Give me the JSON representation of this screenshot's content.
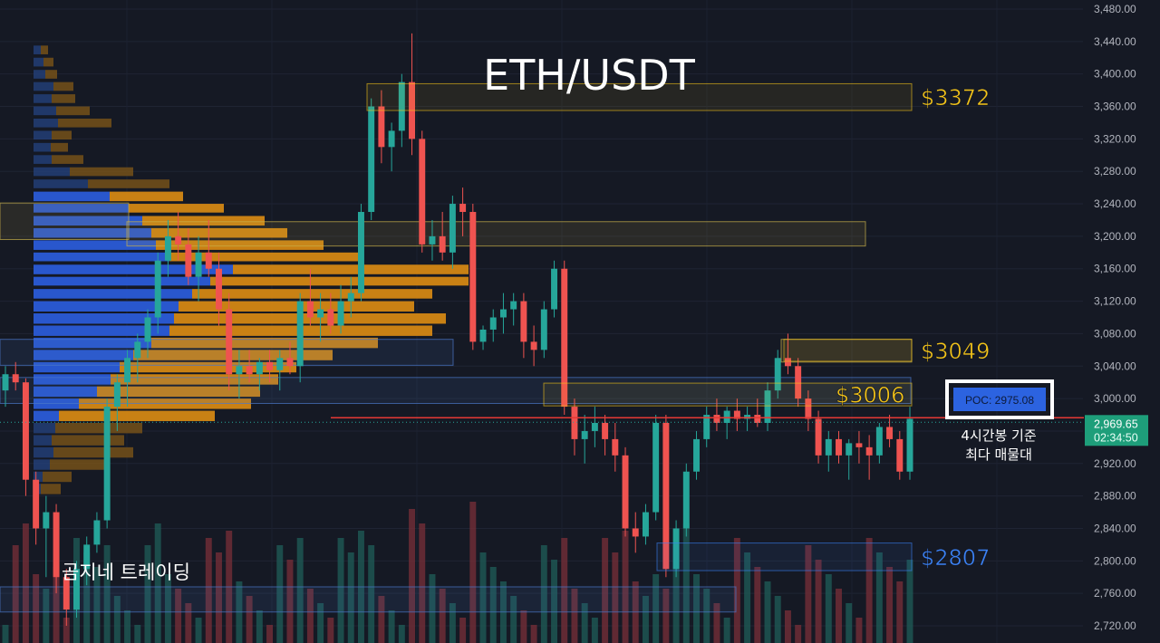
{
  "chart_data": {
    "type": "candlestick",
    "title": "ETH/USDT",
    "symbol": "ETH/USDT",
    "ylim": [
      2705,
      3490
    ],
    "y_ticks": [
      "3,480.00",
      "3,440.00",
      "3,400.00",
      "3,360.00",
      "3,320.00",
      "3,280.00",
      "3,240.00",
      "3,200.00",
      "3,160.00",
      "3,120.00",
      "3,080.00",
      "3,040.00",
      "3,000.00",
      "2,960.00",
      "2,920.00",
      "2,880.00",
      "2,840.00",
      "2,800.00",
      "2,760.00",
      "2,720.00"
    ],
    "y_tick_values": [
      3480,
      3440,
      3400,
      3360,
      3320,
      3280,
      3240,
      3200,
      3160,
      3120,
      3080,
      3040,
      3000,
      2960,
      2920,
      2880,
      2840,
      2800,
      2760,
      2720
    ],
    "current_price": {
      "value": 2969.65,
      "label": "2,969.65",
      "countdown": "02:34:50"
    },
    "levels": [
      {
        "label": "$3372",
        "value": 3372,
        "color": "#f5c518",
        "top": 3388,
        "bottom": 3355
      },
      {
        "label": "$3049",
        "value": 3049,
        "color": "#f5c518",
        "top": 3073,
        "bottom": 3046
      },
      {
        "label": "$3006",
        "value": 3006,
        "color": "#f5c518",
        "top": 3019,
        "bottom": 2991
      },
      {
        "label": "$2807",
        "value": 2807,
        "color": "#3b82f6",
        "top": 2822,
        "bottom": 2788
      }
    ],
    "zones": [
      {
        "top": 3241,
        "bottom": 3196,
        "color": "#c9b04a"
      },
      {
        "top": 3218,
        "bottom": 3188,
        "color": "#c9b04a"
      },
      {
        "top": 3073,
        "bottom": 3041,
        "color": "#4a78c9"
      },
      {
        "top": 3026,
        "bottom": 2994,
        "color": "#4a78c9"
      },
      {
        "top": 3073,
        "bottom": 3045,
        "color": "#c9b04a"
      },
      {
        "top": 2768,
        "bottom": 2737,
        "color": "#4a78c9"
      }
    ],
    "poc": {
      "label": "POC: 2975.08",
      "value": 2975.08
    },
    "poc_note": [
      "4시간봉 기준",
      "최다 매물대"
    ],
    "watermark": "곰지네 트레이딩",
    "candles": [
      [
        3010,
        3040,
        2990,
        3030
      ],
      [
        3030,
        3045,
        3010,
        3020
      ],
      [
        3020,
        3025,
        2880,
        2900
      ],
      [
        2900,
        2910,
        2820,
        2840
      ],
      [
        2840,
        2880,
        2780,
        2860
      ],
      [
        2860,
        2870,
        2760,
        2780
      ],
      [
        2780,
        2790,
        2720,
        2740
      ],
      [
        2740,
        2800,
        2730,
        2790
      ],
      [
        2790,
        2830,
        2770,
        2820
      ],
      [
        2820,
        2860,
        2810,
        2850
      ],
      [
        2850,
        3000,
        2840,
        2990
      ],
      [
        2990,
        3030,
        2960,
        3020
      ],
      [
        3020,
        3060,
        2990,
        3050
      ],
      [
        3050,
        3080,
        3020,
        3070
      ],
      [
        3070,
        3110,
        3050,
        3100
      ],
      [
        3100,
        3180,
        3080,
        3170
      ],
      [
        3170,
        3220,
        3150,
        3200
      ],
      [
        3200,
        3230,
        3170,
        3190
      ],
      [
        3190,
        3210,
        3140,
        3150
      ],
      [
        3150,
        3200,
        3120,
        3180
      ],
      [
        3180,
        3220,
        3150,
        3160
      ],
      [
        3160,
        3180,
        3090,
        3110
      ],
      [
        3110,
        3130,
        3010,
        3030
      ],
      [
        3030,
        3060,
        3000,
        3040
      ],
      [
        3040,
        3060,
        3020,
        3030
      ],
      [
        3030,
        3050,
        3010,
        3045
      ],
      [
        3045,
        3060,
        3020,
        3035
      ],
      [
        3035,
        3060,
        3010,
        3050
      ],
      [
        3050,
        3070,
        3030,
        3040
      ],
      [
        3040,
        3130,
        3020,
        3120
      ],
      [
        3120,
        3160,
        3090,
        3100
      ],
      [
        3100,
        3130,
        3070,
        3110
      ],
      [
        3110,
        3130,
        3080,
        3090
      ],
      [
        3090,
        3140,
        3080,
        3120
      ],
      [
        3120,
        3150,
        3100,
        3130
      ],
      [
        3130,
        3240,
        3120,
        3230
      ],
      [
        3230,
        3370,
        3220,
        3360
      ],
      [
        3360,
        3380,
        3290,
        3310
      ],
      [
        3310,
        3340,
        3280,
        3330
      ],
      [
        3330,
        3400,
        3310,
        3390
      ],
      [
        3390,
        3450,
        3300,
        3320
      ],
      [
        3320,
        3330,
        3180,
        3190
      ],
      [
        3190,
        3220,
        3170,
        3200
      ],
      [
        3200,
        3230,
        3170,
        3180
      ],
      [
        3180,
        3250,
        3160,
        3240
      ],
      [
        3240,
        3260,
        3200,
        3230
      ],
      [
        3230,
        3240,
        3060,
        3070
      ],
      [
        3070,
        3090,
        3060,
        3085
      ],
      [
        3085,
        3110,
        3070,
        3100
      ],
      [
        3100,
        3130,
        3080,
        3110
      ],
      [
        3110,
        3130,
        3090,
        3120
      ],
      [
        3120,
        3130,
        3050,
        3070
      ],
      [
        3070,
        3090,
        3040,
        3060
      ],
      [
        3060,
        3120,
        3050,
        3110
      ],
      [
        3110,
        3170,
        3100,
        3160
      ],
      [
        3160,
        3170,
        2980,
        2990
      ],
      [
        2990,
        3000,
        2930,
        2950
      ],
      [
        2950,
        2980,
        2920,
        2960
      ],
      [
        2960,
        2990,
        2940,
        2970
      ],
      [
        2970,
        2980,
        2930,
        2950
      ],
      [
        2950,
        2970,
        2910,
        2930
      ],
      [
        2930,
        2940,
        2830,
        2840
      ],
      [
        2840,
        2860,
        2810,
        2830
      ],
      [
        2830,
        2870,
        2820,
        2860
      ],
      [
        2860,
        2980,
        2850,
        2970
      ],
      [
        2970,
        2980,
        2780,
        2790
      ],
      [
        2790,
        2850,
        2780,
        2840
      ],
      [
        2840,
        2920,
        2830,
        2910
      ],
      [
        2910,
        2960,
        2900,
        2950
      ],
      [
        2950,
        2990,
        2940,
        2980
      ],
      [
        2980,
        3000,
        2960,
        2970
      ],
      [
        2970,
        2990,
        2950,
        2985
      ],
      [
        2985,
        3000,
        2960,
        2975
      ],
      [
        2975,
        2990,
        2960,
        2980
      ],
      [
        2980,
        3000,
        2965,
        2970
      ],
      [
        2970,
        3020,
        2960,
        3010
      ],
      [
        3010,
        3060,
        3000,
        3050
      ],
      [
        3050,
        3080,
        3030,
        3040
      ],
      [
        3040,
        3050,
        2990,
        3000
      ],
      [
        3000,
        3010,
        2960,
        2975
      ],
      [
        2975,
        2985,
        2920,
        2930
      ],
      [
        2930,
        2960,
        2910,
        2950
      ],
      [
        2950,
        2960,
        2920,
        2930
      ],
      [
        2930,
        2950,
        2900,
        2945
      ],
      [
        2945,
        2960,
        2920,
        2940
      ],
      [
        2940,
        2955,
        2900,
        2930
      ],
      [
        2930,
        2970,
        2920,
        2965
      ],
      [
        2965,
        2980,
        2940,
        2950
      ],
      [
        2950,
        2960,
        2900,
        2910
      ],
      [
        2910,
        2990,
        2900,
        2975
      ]
    ],
    "volume_profile": [
      [
        3435,
        3422,
        8,
        16
      ],
      [
        3420,
        3407,
        11,
        22
      ],
      [
        3405,
        3392,
        13,
        26
      ],
      [
        3390,
        3377,
        22,
        44
      ],
      [
        3375,
        3362,
        20,
        46
      ],
      [
        3360,
        3347,
        25,
        62
      ],
      [
        3345,
        3332,
        27,
        86
      ],
      [
        3330,
        3317,
        20,
        42
      ],
      [
        3315,
        3302,
        19,
        38
      ],
      [
        3300,
        3287,
        20,
        55
      ],
      [
        3285,
        3272,
        40,
        110
      ],
      [
        3270,
        3257,
        60,
        150
      ],
      [
        3255,
        3241,
        84,
        165
      ],
      [
        3240,
        3227,
        105,
        210
      ],
      [
        3225,
        3211,
        120,
        255
      ],
      [
        3210,
        3196,
        130,
        280
      ],
      [
        3195,
        3181,
        135,
        320
      ],
      [
        3180,
        3167,
        150,
        360
      ],
      [
        3165,
        3151,
        220,
        480
      ],
      [
        3150,
        3137,
        195,
        480
      ],
      [
        3135,
        3121,
        175,
        440
      ],
      [
        3120,
        3105,
        160,
        420
      ],
      [
        3105,
        3090,
        155,
        455
      ],
      [
        3090,
        3075,
        150,
        440
      ],
      [
        3075,
        3060,
        130,
        380
      ],
      [
        3060,
        3045,
        110,
        330
      ],
      [
        3045,
        3030,
        95,
        290
      ],
      [
        3030,
        3015,
        85,
        270
      ],
      [
        3015,
        3000,
        70,
        250
      ],
      [
        3000,
        2985,
        50,
        240
      ],
      [
        2985,
        2970,
        28,
        200
      ],
      [
        2970,
        2955,
        24,
        120
      ],
      [
        2955,
        2940,
        20,
        100
      ],
      [
        2940,
        2925,
        22,
        110
      ],
      [
        2925,
        2910,
        18,
        80
      ],
      [
        2910,
        2895,
        10,
        42
      ],
      [
        2895,
        2880,
        8,
        30
      ]
    ]
  }
}
